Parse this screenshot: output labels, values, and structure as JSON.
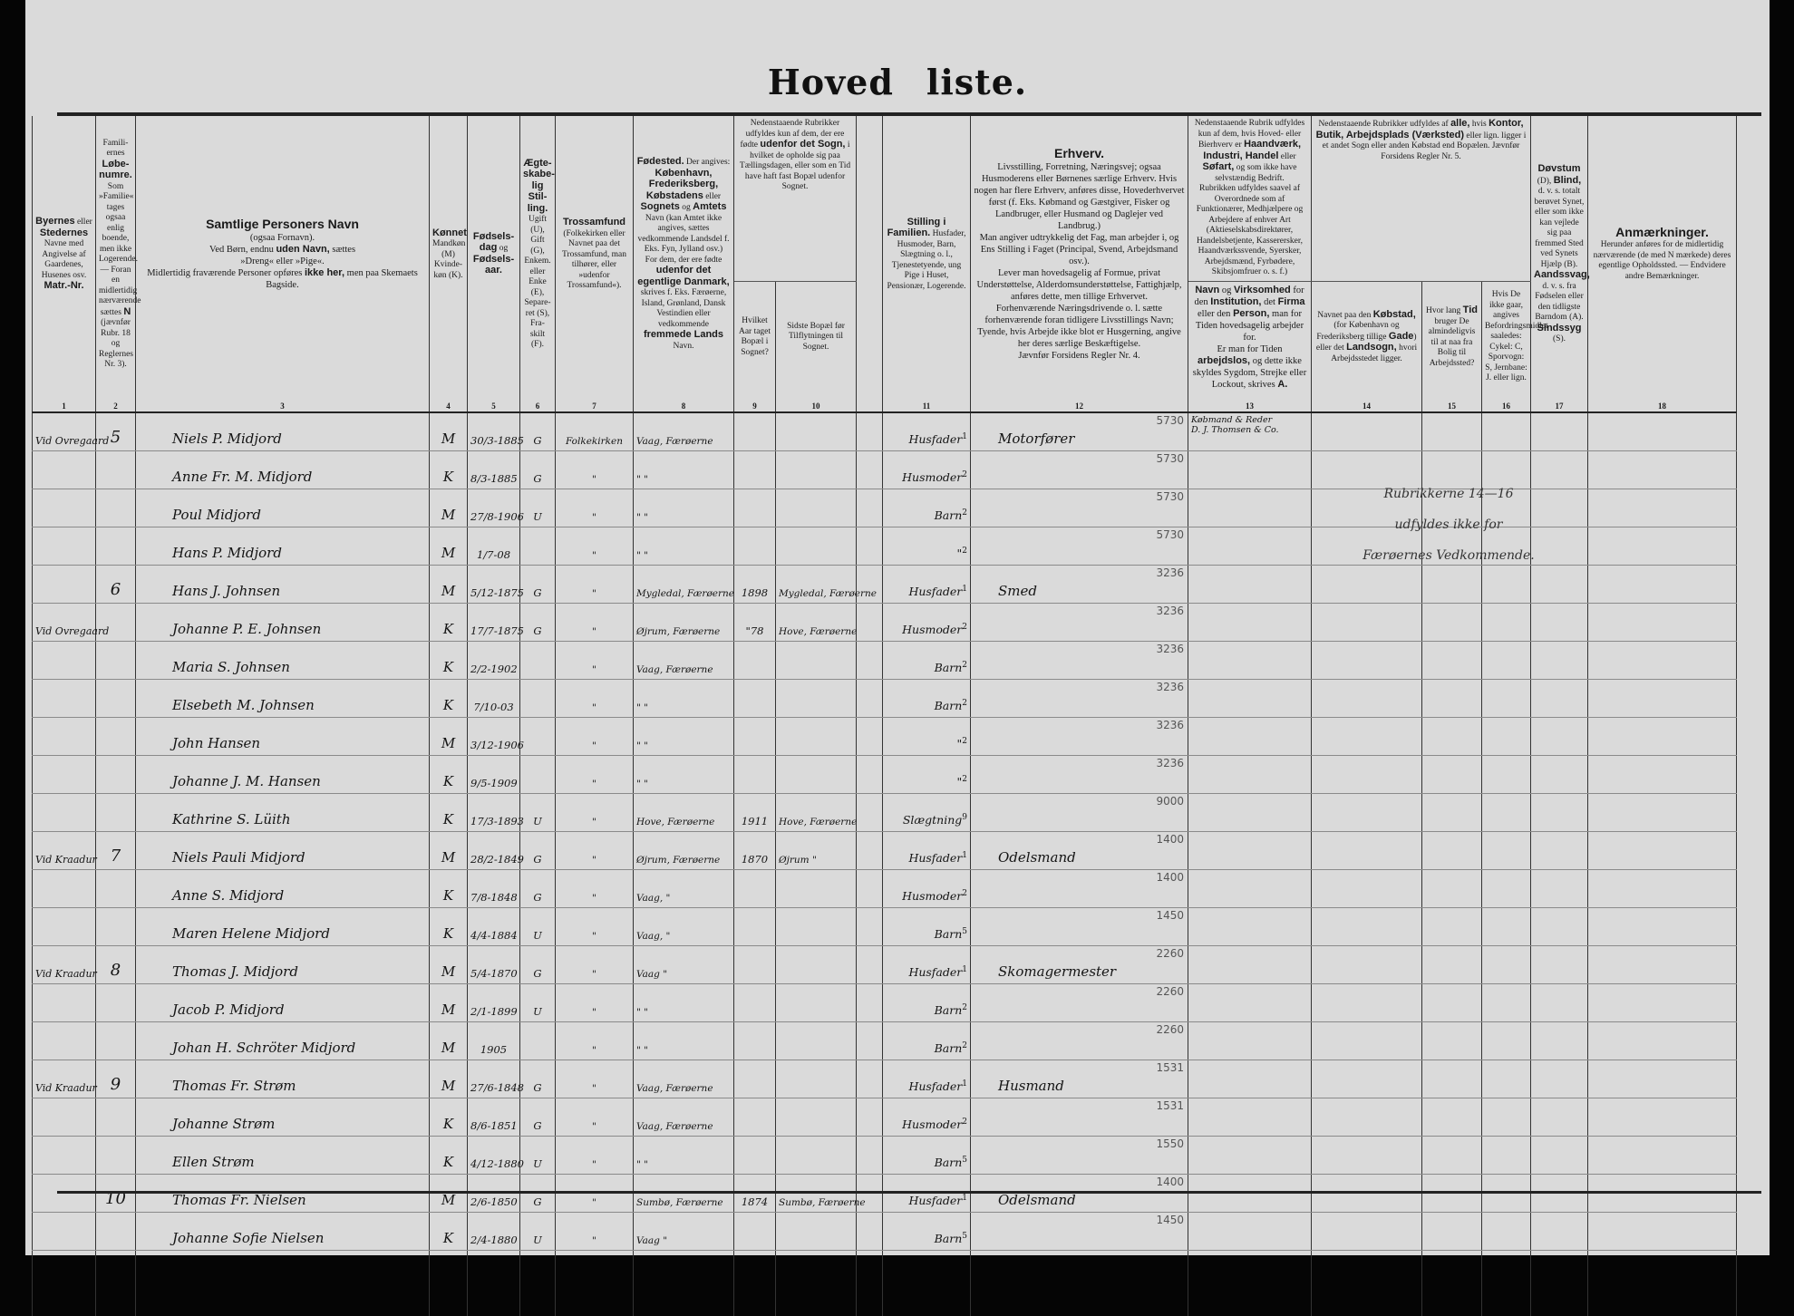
{
  "document": {
    "title_part1": "Hoved",
    "title_part2": "liste."
  },
  "header": {
    "cols": [
      {
        "num": "1",
        "segs": [
          {
            "t": "Byernes",
            "b": true
          },
          {
            "t": " eller "
          },
          {
            "t": "Stedernes",
            "b": true
          },
          {
            "t": " Navne med Angivelse af Gaardenes, Husenes osv. "
          },
          {
            "t": "Matr.-Nr.",
            "b": true
          }
        ]
      },
      {
        "num": "2",
        "segs": [
          {
            "t": "Famili-ernes "
          },
          {
            "t": "Løbe-numre.",
            "b": true
          },
          {
            "t": " Som »Familie« tages ogsaa enlig boende, men ikke Logerende. — Foran en midlertidig nærværende sættes "
          },
          {
            "t": "N",
            "b": true
          },
          {
            "t": " (jævnfør Rubr. 18 og Reglernes Nr. 3)."
          }
        ]
      },
      {
        "num": "3",
        "segs": [
          {
            "t": "Samtlige Personers Navn",
            "b": true
          },
          {
            "t": "\n(ogsaa Fornavn).\nVed Børn, endnu "
          },
          {
            "t": "uden Navn,",
            "b": true
          },
          {
            "t": " sættes\n»Dreng« eller »Pige«.\nMidlertidig fraværende Personer opføres "
          },
          {
            "t": "ikke her,",
            "b": true
          },
          {
            "t": " men paa Skemaets Bagside."
          }
        ]
      },
      {
        "num": "4",
        "segs": [
          {
            "t": "Kønnet",
            "b": true
          },
          {
            "t": " Mandkøn (M) Kvinde-køn (K)."
          }
        ]
      },
      {
        "num": "5",
        "segs": [
          {
            "t": "Fødsels-dag",
            "b": true
          },
          {
            "t": " og "
          },
          {
            "t": "Fødsels-aar.",
            "b": true
          }
        ]
      },
      {
        "num": "6",
        "segs": [
          {
            "t": "Ægte-skabe-lig Stil-ling.",
            "b": true
          },
          {
            "t": " Ugift (U), Gift (G), Enkem. eller Enke (E), Separe-ret (S), Fra-skilt (F)."
          }
        ]
      },
      {
        "num": "7",
        "segs": [
          {
            "t": "Trossamfund",
            "b": true
          },
          {
            "t": " (Folkekirken eller Navnet paa det Trossamfund, man tilhører, eller »udenfor Trossamfund«)."
          }
        ]
      },
      {
        "num": "8",
        "segs": [
          {
            "t": "Fødested.",
            "b": true
          },
          {
            "t": " Der angives: "
          },
          {
            "t": "København, Frederiksberg, Købstadens",
            "b": true
          },
          {
            "t": " eller "
          },
          {
            "t": "Sognets",
            "b": true
          },
          {
            "t": " og "
          },
          {
            "t": "Amtets",
            "b": true
          },
          {
            "t": " Navn (kan Amtet ikke angives, sættes vedkommende Landsdel f. Eks. Fyn, Jylland osv.)\nFor dem, der ere fødte "
          },
          {
            "t": "udenfor det egentlige Danmark,",
            "b": true
          },
          {
            "t": " skrives f. Eks. Færøerne, Island, Grønland, Dansk Vestindien eller vedkommende "
          },
          {
            "t": "fremmede Lands",
            "b": true
          },
          {
            "t": " Navn."
          }
        ]
      },
      {
        "num": "9",
        "segs": [
          {
            "t": "Hvilket Aar taget Bopæl i Sognet?"
          }
        ]
      },
      {
        "num": "10",
        "segs": [
          {
            "t": "Sidste Bopæl før Tilflytningen til Sognet."
          }
        ]
      },
      {
        "num": "11",
        "segs": [
          {
            "t": "Stilling i Familien.",
            "b": true
          },
          {
            "t": " Husfader, Husmoder, Barn, Slægtning o. l., Tjenestetyende, ung Pige i Huset, Pensionær, Logerende."
          }
        ]
      },
      {
        "num": "12",
        "segs": [
          {
            "t": "Erhverv.",
            "b": true
          },
          {
            "t": "\nLivsstilling, Forretning, Næringsvej; ogsaa Husmoderens eller Børnenes særlige Erhverv. Hvis nogen har flere Erhverv, anføres disse, Hovederhvervet først (f. Eks. Købmand og Gæstgiver, Fisker og Landbruger, eller Husmand og Daglejer ved Landbrug.)\nMan angiver udtrykkelig det Fag, man arbejder i, og Ens Stilling i Faget (Principal, Svend, Arbejdsmand osv.).\nLever man hovedsagelig af Formue, privat Understøttelse, Alderdomsunderstøttelse, Fattighjælp, anføres dette, men tillige Erhvervet.\nForhenværende Næringsdrivende o. l. sætte forhenværende foran tidligere Livsstillings Navn; Tyende, hvis Arbejde ikke blot er Husgerning, angive her deres særlige Beskæftigelse.\nJævnfør Forsidens Regler Nr. 4."
          }
        ]
      },
      {
        "num": "13",
        "segs": [
          {
            "t": "Navn",
            "b": true
          },
          {
            "t": " og "
          },
          {
            "t": "Virksomhed",
            "b": true
          },
          {
            "t": " for den "
          },
          {
            "t": "Institution,",
            "b": true
          },
          {
            "t": " det "
          },
          {
            "t": "Firma",
            "b": true
          },
          {
            "t": " eller den "
          },
          {
            "t": "Person,",
            "b": true
          },
          {
            "t": " man for Tiden hovedsagelig arbejder for.\nEr man for Tiden "
          },
          {
            "t": "arbejdslos,",
            "b": true
          },
          {
            "t": " og dette ikke skyldes Sygdom, Strejke eller Lockout, skrives "
          },
          {
            "t": "A.",
            "b": true
          }
        ]
      },
      {
        "num": "14",
        "segs": [
          {
            "t": "Navnet paa den "
          },
          {
            "t": "Købstad,",
            "b": true
          },
          {
            "t": " (for København og Frederiksberg tillige "
          },
          {
            "t": "Gade",
            "b": true
          },
          {
            "t": ") eller det "
          },
          {
            "t": "Landsogn,",
            "b": true
          },
          {
            "t": " hvori Arbejdsstedet ligger."
          }
        ]
      },
      {
        "num": "15",
        "segs": [
          {
            "t": "Hvor lang "
          },
          {
            "t": "Tid",
            "b": true
          },
          {
            "t": " bruger De almindeligvis til at naa fra Bolig til Arbejdssted?"
          }
        ]
      },
      {
        "num": "16",
        "segs": [
          {
            "t": "Hvis De ikke gaar, angives Befordringsmidlet saaledes: Cykel: C, Sporvogn: S, Jernbane: J. eller lign."
          }
        ]
      },
      {
        "num": "17",
        "segs": [
          {
            "t": "Døvstum",
            "b": true
          },
          {
            "t": " (D), "
          },
          {
            "t": "Blind,",
            "b": true
          },
          {
            "t": " d. v. s. totalt berøvet Synet, eller som ikke kan vejlede sig paa fremmed Sted ved Synets Hjælp (B). "
          },
          {
            "t": "Aandssvag,",
            "b": true
          },
          {
            "t": " d. v. s. fra Fødselen eller den tidligste Barndom (A). "
          },
          {
            "t": "Sindssyg",
            "b": true
          },
          {
            "t": " (S)."
          }
        ]
      },
      {
        "num": "18",
        "segs": [
          {
            "t": "Anmærkninger.",
            "b": true
          },
          {
            "t": "\nHerunder anføres for de midlertidig nærværende (de med N mærkede) deres egentlige Opholdssted. — Endvidere andre Bemærkninger."
          }
        ]
      }
    ],
    "upper_9_10": [
      {
        "t": "Nedenstaaende Rubrikker udfyldes kun af dem, der ere fødte "
      },
      {
        "t": "udenfor det Sogn,",
        "b": true
      },
      {
        "t": " i hvilket de opholde sig paa Tællingsdagen, eller som en Tid have haft fast Bopæl udenfor Sognet."
      }
    ],
    "upper_13": [
      {
        "t": "Nedenstaaende Rubrik udfyldes kun af dem, hvis Hoved- eller Bierhverv er "
      },
      {
        "t": "Haandværk, Industri, Handel",
        "b": true
      },
      {
        "t": " eller "
      },
      {
        "t": "Søfart,",
        "b": true
      },
      {
        "t": " og som ikke have selvstændig Bedrift.\nRubrikken udfyldes saavel af Overordnede som af Funktionærer, Medhjælpere og Arbejdere af enhver Art (Aktieselskabsdirektører, Handelsbetjente, Kasserersker, Haandværkssvende, Syersker, Arbejdsmænd, Fyrbødere, Skibsjomfruer o. s. f.)"
      }
    ],
    "upper_14_16": [
      {
        "t": "Nedenstaaende Rubrikker udfyldes af "
      },
      {
        "t": "alle,",
        "b": true
      },
      {
        "t": " hvis "
      },
      {
        "t": "Kontor, Butik, Arbejdsplads (Værksted)",
        "b": true
      },
      {
        "t": " eller lign. ligger i et andet Sogn eller anden Købstad end Bopælen. Jævnfør Forsidens Regler Nr. 5."
      }
    ]
  },
  "rows": [
    {
      "place": "Vid Ovregaard",
      "fam": "5",
      "name": "Niels P. Midjord",
      "sex": "M",
      "birth": "30/3-1885",
      "mar": "G",
      "faith": "Folkekirken",
      "bp": "Vaag, Færøerne",
      "year": "",
      "last": "",
      "pos": "Husfader",
      "posn": "1",
      "occ": "Motorfører",
      "occn": "5730",
      "emp": "Købmand & Reder\nD. J. Thomsen & Co."
    },
    {
      "place": "",
      "fam": "",
      "name": "Anne Fr. M. Midjord",
      "sex": "K",
      "birth": "8/3-1885",
      "mar": "G",
      "faith": "\"",
      "bp": "\"   \"",
      "year": "",
      "last": "",
      "pos": "Husmoder",
      "posn": "2",
      "occ": "",
      "occn": "5730",
      "emp": ""
    },
    {
      "place": "",
      "fam": "",
      "name": "Poul  Midjord",
      "sex": "M",
      "birth": "27/8-1906",
      "mar": "U",
      "faith": "\"",
      "bp": "\"   \"",
      "year": "",
      "last": "",
      "pos": "Barn",
      "posn": "2",
      "occ": "",
      "occn": "5730",
      "emp": ""
    },
    {
      "place": "",
      "fam": "",
      "name": "Hans P.  Midjord",
      "sex": "M",
      "birth": "1/7-08",
      "mar": "",
      "faith": "\"",
      "bp": "\"   \"",
      "year": "",
      "last": "",
      "pos": "\"",
      "posn": "2",
      "occ": "",
      "occn": "5730",
      "emp": ""
    },
    {
      "place": "",
      "fam": "6",
      "name": "Hans J. Johnsen",
      "sex": "M",
      "birth": "5/12-1875",
      "mar": "G",
      "faith": "\"",
      "bp": "Mygledal, Færøerne",
      "year": "1898",
      "last": "Mygledal, Færøerne",
      "pos": "Husfader",
      "posn": "1",
      "occ": "Smed",
      "occn": "3236",
      "emp": ""
    },
    {
      "place": "Vid Ovregaard",
      "fam": "",
      "name": "Johanne P. E. Johnsen",
      "sex": "K",
      "birth": "17/7-1875",
      "mar": "G",
      "faith": "\"",
      "bp": "Øjrum, Færøerne",
      "year": "\"78",
      "last": "Hove, Færøerne",
      "pos": "Husmoder",
      "posn": "2",
      "occ": "",
      "occn": "3236",
      "emp": ""
    },
    {
      "place": "",
      "fam": "",
      "name": "Maria S.  Johnsen",
      "sex": "K",
      "birth": "2/2-1902",
      "mar": "",
      "faith": "\"",
      "bp": "Vaag, Færøerne",
      "year": "",
      "last": "",
      "pos": "Barn",
      "posn": "2",
      "occ": "",
      "occn": "3236",
      "emp": ""
    },
    {
      "place": "",
      "fam": "",
      "name": "Elsebeth M. Johnsen",
      "sex": "K",
      "birth": "7/10-03",
      "mar": "",
      "faith": "\"",
      "bp": "\"   \"",
      "year": "",
      "last": "",
      "pos": "Barn",
      "posn": "2",
      "occ": "",
      "occn": "3236",
      "emp": ""
    },
    {
      "place": "",
      "fam": "",
      "name": "John  Hansen",
      "sex": "M",
      "birth": "3/12-1906",
      "mar": "",
      "faith": "\"",
      "bp": "\"   \"",
      "year": "",
      "last": "",
      "pos": "\"",
      "posn": "2",
      "occ": "",
      "occn": "3236",
      "emp": ""
    },
    {
      "place": "",
      "fam": "",
      "name": "Johanne J. M. Hansen",
      "sex": "K",
      "birth": "9/5-1909",
      "mar": "",
      "faith": "\"",
      "bp": "\"   \"",
      "year": "",
      "last": "",
      "pos": "\"",
      "posn": "2",
      "occ": "",
      "occn": "3236",
      "emp": ""
    },
    {
      "place": "",
      "fam": "",
      "name": "Kathrine S. Lüith",
      "sex": "K",
      "birth": "17/3-1893",
      "mar": "U",
      "faith": "\"",
      "bp": "Hove, Færøerne",
      "year": "1911",
      "last": "Hove, Færøerne",
      "pos": "Slægtning",
      "posn": "9",
      "occ": "",
      "occn": "9000",
      "emp": ""
    },
    {
      "place": "Vid Kraadur",
      "fam": "7",
      "name": "Niels Pauli Midjord",
      "sex": "M",
      "birth": "28/2-1849",
      "mar": "G",
      "faith": "\"",
      "bp": "Øjrum, Færøerne",
      "year": "1870",
      "last": "Øjrum \"",
      "pos": "Husfader",
      "posn": "1",
      "occ": "Odelsmand",
      "occn": "1400",
      "emp": ""
    },
    {
      "place": "",
      "fam": "",
      "name": "Anne S.  Midjord",
      "sex": "K",
      "birth": "7/8-1848",
      "mar": "G",
      "faith": "\"",
      "bp": "Vaag, \"",
      "year": "",
      "last": "",
      "pos": "Husmoder",
      "posn": "2",
      "occ": "",
      "occn": "1400",
      "emp": ""
    },
    {
      "place": "",
      "fam": "",
      "name": "Maren Helene Midjord",
      "sex": "K",
      "birth": "4/4-1884",
      "mar": "U",
      "faith": "\"",
      "bp": "Vaag, \"",
      "year": "",
      "last": "",
      "pos": "Barn",
      "posn": "5",
      "occ": "",
      "occn": "1450",
      "emp": ""
    },
    {
      "place": "Vid Kraadur",
      "fam": "8",
      "name": "Thomas J. Midjord",
      "sex": "M",
      "birth": "5/4-1870",
      "mar": "G",
      "faith": "\"",
      "bp": "Vaag  \"",
      "year": "",
      "last": "",
      "pos": "Husfader",
      "posn": "1",
      "occ": "Skomagermester",
      "occn": "2260",
      "emp": ""
    },
    {
      "place": "",
      "fam": "",
      "name": "Jacob P. Midjord",
      "sex": "M",
      "birth": "2/1-1899",
      "mar": "U",
      "faith": "\"",
      "bp": "\"   \"",
      "year": "",
      "last": "",
      "pos": "Barn",
      "posn": "2",
      "occ": "",
      "occn": "2260",
      "emp": ""
    },
    {
      "place": "",
      "fam": "",
      "name": "Johan H. Schröter Midjord",
      "sex": "M",
      "birth": "1905",
      "mar": "",
      "faith": "\"",
      "bp": "\"   \"",
      "year": "",
      "last": "",
      "pos": "Barn",
      "posn": "2",
      "occ": "",
      "occn": "2260",
      "emp": ""
    },
    {
      "place": "Vid Kraadur",
      "fam": "9",
      "name": "Thomas Fr.  Strøm",
      "sex": "M",
      "birth": "27/6-1848",
      "mar": "G",
      "faith": "\"",
      "bp": "Vaag, Færøerne",
      "year": "",
      "last": "",
      "pos": "Husfader",
      "posn": "1",
      "occ": "Husmand",
      "occn": "1531",
      "emp": ""
    },
    {
      "place": "",
      "fam": "",
      "name": "Johanne  Strøm",
      "sex": "K",
      "birth": "8/6-1851",
      "mar": "G",
      "faith": "\"",
      "bp": "Vaag, Færøerne",
      "year": "",
      "last": "",
      "pos": "Husmoder",
      "posn": "2",
      "occ": "",
      "occn": "1531",
      "emp": ""
    },
    {
      "place": "",
      "fam": "",
      "name": "Ellen  Strøm",
      "sex": "K",
      "birth": "4/12-1880",
      "mar": "U",
      "faith": "\"",
      "bp": "\"   \"",
      "year": "",
      "last": "",
      "pos": "Barn",
      "posn": "5",
      "occ": "",
      "occn": "1550",
      "emp": ""
    },
    {
      "place": "",
      "fam": "10",
      "name": "Thomas Fr. Nielsen",
      "sex": "M",
      "birth": "2/6-1850",
      "mar": "G",
      "faith": "\"",
      "bp": "Sumbø, Færøerne",
      "year": "1874",
      "last": "Sumbø, Færøerne",
      "pos": "Husfader",
      "posn": "1",
      "occ": "Odelsmand",
      "occn": "1400",
      "emp": ""
    },
    {
      "place": "",
      "fam": "",
      "name": "Johanne Sofie Nielsen",
      "sex": "K",
      "birth": "2/4-1880",
      "mar": "U",
      "faith": "\"",
      "bp": "Vaag  \"",
      "year": "",
      "last": "",
      "pos": "Barn",
      "posn": "5",
      "occ": "",
      "occn": "1450",
      "emp": ""
    }
  ],
  "note_14_16": "Rubrikkerne 14—16\nudfyldes ikke for\nFærøernes Vedkommende."
}
